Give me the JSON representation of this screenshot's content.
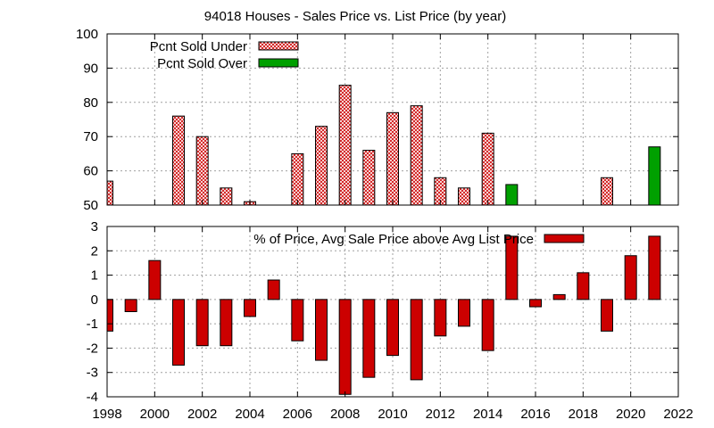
{
  "chart_data": [
    {
      "type": "bar",
      "title": "94018 Houses - Sales Price vs. List Price (by year)",
      "xlabel": "",
      "ylabel": "",
      "xlim": [
        1998,
        2022
      ],
      "ylim": [
        50,
        100
      ],
      "y_ticks": [
        "50",
        "60",
        "70",
        "80",
        "90",
        "100"
      ],
      "grid": true,
      "legend_position": "top-left",
      "series": [
        {
          "name": "Pcnt Sold Under",
          "color": "#cc0000",
          "pattern": "crosshatch",
          "points": [
            {
              "x": 1998,
              "y": 57
            },
            {
              "x": 2001,
              "y": 76
            },
            {
              "x": 2002,
              "y": 70
            },
            {
              "x": 2003,
              "y": 55
            },
            {
              "x": 2004,
              "y": 51
            },
            {
              "x": 2006,
              "y": 65
            },
            {
              "x": 2007,
              "y": 73
            },
            {
              "x": 2008,
              "y": 85
            },
            {
              "x": 2009,
              "y": 66
            },
            {
              "x": 2010,
              "y": 77
            },
            {
              "x": 2011,
              "y": 79
            },
            {
              "x": 2012,
              "y": 58
            },
            {
              "x": 2013,
              "y": 55
            },
            {
              "x": 2014,
              "y": 71
            },
            {
              "x": 2019,
              "y": 58
            }
          ]
        },
        {
          "name": "Pcnt Sold Over",
          "color": "#00a000",
          "pattern": "solid",
          "points": [
            {
              "x": 2015,
              "y": 56
            },
            {
              "x": 2021,
              "y": 67
            }
          ]
        }
      ]
    },
    {
      "type": "bar",
      "xlabel": "",
      "ylabel": "",
      "xlim": [
        1998,
        2022
      ],
      "ylim": [
        -4,
        3
      ],
      "y_ticks": [
        "-4",
        "-3",
        "-2",
        "-1",
        "0",
        "1",
        "2",
        "3"
      ],
      "x_ticks": [
        "1998",
        "2000",
        "2002",
        "2004",
        "2006",
        "2008",
        "2010",
        "2012",
        "2014",
        "2016",
        "2018",
        "2020",
        "2022"
      ],
      "grid": true,
      "legend_position": "top-right",
      "series": [
        {
          "name": "% of Price, Avg Sale Price above Avg List Price",
          "color": "#cc0000",
          "pattern": "solid",
          "points": [
            {
              "x": 1998,
              "y": -1.3
            },
            {
              "x": 1999,
              "y": -0.5
            },
            {
              "x": 2000,
              "y": 1.6
            },
            {
              "x": 2001,
              "y": -2.7
            },
            {
              "x": 2002,
              "y": -1.9
            },
            {
              "x": 2003,
              "y": -1.9
            },
            {
              "x": 2004,
              "y": -0.7
            },
            {
              "x": 2005,
              "y": 0.8
            },
            {
              "x": 2006,
              "y": -1.7
            },
            {
              "x": 2007,
              "y": -2.5
            },
            {
              "x": 2008,
              "y": -3.9
            },
            {
              "x": 2009,
              "y": -3.2
            },
            {
              "x": 2010,
              "y": -2.3
            },
            {
              "x": 2011,
              "y": -3.3
            },
            {
              "x": 2012,
              "y": -1.5
            },
            {
              "x": 2013,
              "y": -1.1
            },
            {
              "x": 2014,
              "y": -2.1
            },
            {
              "x": 2015,
              "y": 2.6
            },
            {
              "x": 2016,
              "y": -0.3
            },
            {
              "x": 2017,
              "y": 0.2
            },
            {
              "x": 2018,
              "y": 1.1
            },
            {
              "x": 2019,
              "y": -1.3
            },
            {
              "x": 2020,
              "y": 1.8
            },
            {
              "x": 2021,
              "y": 2.6
            }
          ]
        }
      ]
    }
  ]
}
